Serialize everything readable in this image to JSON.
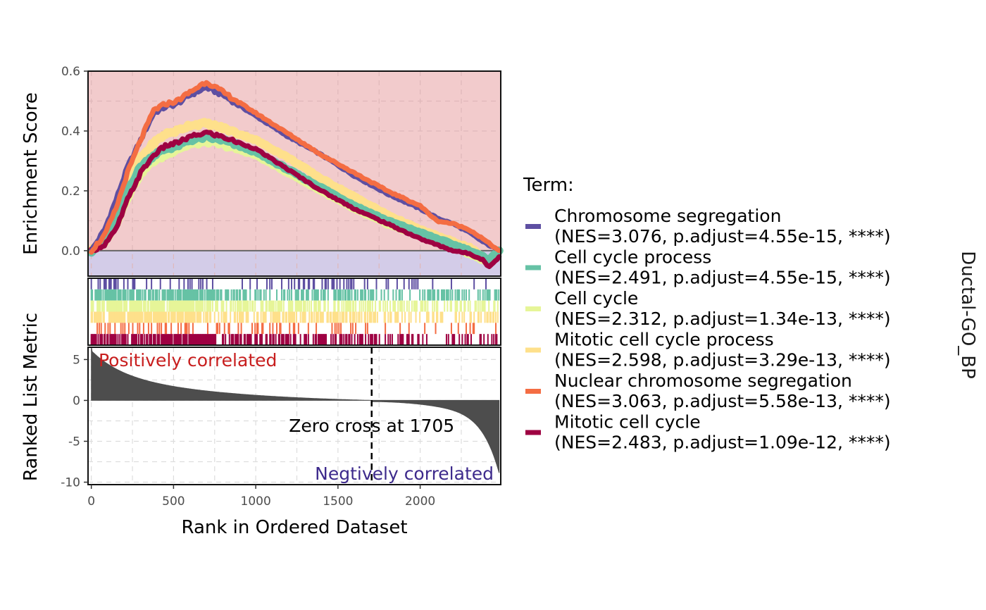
{
  "chart_data": {
    "type": "line",
    "strip_label": "Ductal-GO_BP",
    "legend": {
      "title": "Term:",
      "placement": "right"
    },
    "colors": {
      "positive_bg": "#F2CBCC",
      "negative_bg": "#D3CCE8",
      "positive_text": "#C81E1E",
      "negative_text": "#3D2A8C",
      "metric_fill": "#4D4D4D"
    },
    "x": {
      "label": "Rank in Ordered Dataset",
      "ticks": [
        0,
        500,
        1000,
        1500,
        2000
      ],
      "lim": [
        -20,
        2490
      ]
    },
    "panels": {
      "enrichment": {
        "ylabel": "Enrichment Score",
        "yticks": [
          "0.0",
          "0.2",
          "0.4",
          "0.6"
        ],
        "ytick_values": [
          0.0,
          0.2,
          0.4,
          0.6
        ],
        "ylim": [
          -0.085,
          0.6
        ]
      },
      "metric": {
        "ylabel": "Ranked List Metric",
        "yticks": [
          "5",
          "0",
          "-5",
          "-10"
        ],
        "ytick_values": [
          5,
          0,
          -5,
          -10
        ],
        "ylim": [
          -10.3,
          6.5
        ],
        "positive_label": "Positively correlated",
        "negative_label": "Negtively correlated",
        "zero_cross_label": "Zero cross at 1705",
        "zero_cross": 1705,
        "total": 2480
      }
    },
    "series": [
      {
        "name": "Chromosome segregation",
        "stats": "(NES=3.076, p.adjust=4.55e-15, ****)",
        "color": "#5E4FA2",
        "points": [
          [
            0,
            0.0
          ],
          [
            80,
            0.07
          ],
          [
            150,
            0.17
          ],
          [
            220,
            0.28
          ],
          [
            300,
            0.37
          ],
          [
            380,
            0.46
          ],
          [
            450,
            0.48
          ],
          [
            520,
            0.49
          ],
          [
            600,
            0.52
          ],
          [
            700,
            0.545
          ],
          [
            800,
            0.52
          ],
          [
            1000,
            0.45
          ],
          [
            1200,
            0.38
          ],
          [
            1400,
            0.32
          ],
          [
            1600,
            0.25
          ],
          [
            1800,
            0.19
          ],
          [
            2000,
            0.14
          ],
          [
            2100,
            0.11
          ],
          [
            2200,
            0.09
          ],
          [
            2300,
            0.06
          ],
          [
            2380,
            0.03
          ],
          [
            2480,
            0.0
          ]
        ]
      },
      {
        "name": "Cell cycle process",
        "stats": "(NES=2.491, p.adjust=4.55e-15, ****)",
        "color": "#66C2A5",
        "points": [
          [
            0,
            0.0
          ],
          [
            80,
            0.04
          ],
          [
            150,
            0.1
          ],
          [
            220,
            0.2
          ],
          [
            300,
            0.28
          ],
          [
            380,
            0.32
          ],
          [
            450,
            0.34
          ],
          [
            520,
            0.35
          ],
          [
            600,
            0.37
          ],
          [
            700,
            0.38
          ],
          [
            800,
            0.37
          ],
          [
            1000,
            0.33
          ],
          [
            1200,
            0.27
          ],
          [
            1400,
            0.21
          ],
          [
            1600,
            0.15
          ],
          [
            1800,
            0.1
          ],
          [
            2000,
            0.06
          ],
          [
            2100,
            0.04
          ],
          [
            2200,
            0.02
          ],
          [
            2300,
            0.0
          ],
          [
            2380,
            -0.02
          ],
          [
            2420,
            -0.03
          ],
          [
            2480,
            0.0
          ]
        ]
      },
      {
        "name": "Cell cycle",
        "stats": "(NES=2.312, p.adjust=1.34e-13, ****)",
        "color": "#E6F598",
        "points": [
          [
            0,
            0.0
          ],
          [
            80,
            0.03
          ],
          [
            150,
            0.09
          ],
          [
            220,
            0.18
          ],
          [
            300,
            0.26
          ],
          [
            380,
            0.3
          ],
          [
            450,
            0.32
          ],
          [
            520,
            0.34
          ],
          [
            600,
            0.355
          ],
          [
            700,
            0.365
          ],
          [
            800,
            0.355
          ],
          [
            1000,
            0.32
          ],
          [
            1200,
            0.26
          ],
          [
            1400,
            0.2
          ],
          [
            1600,
            0.14
          ],
          [
            1800,
            0.09
          ],
          [
            2000,
            0.05
          ],
          [
            2100,
            0.03
          ],
          [
            2200,
            0.01
          ],
          [
            2300,
            -0.01
          ],
          [
            2380,
            -0.03
          ],
          [
            2420,
            -0.04
          ],
          [
            2480,
            0.0
          ]
        ]
      },
      {
        "name": "Mitotic cell cycle process",
        "stats": "(NES=2.598, p.adjust=3.29e-13, ****)",
        "color": "#FEE08B",
        "points": [
          [
            0,
            0.0
          ],
          [
            80,
            0.04
          ],
          [
            150,
            0.11
          ],
          [
            220,
            0.22
          ],
          [
            300,
            0.31
          ],
          [
            380,
            0.36
          ],
          [
            450,
            0.39
          ],
          [
            520,
            0.4
          ],
          [
            600,
            0.42
          ],
          [
            700,
            0.425
          ],
          [
            800,
            0.41
          ],
          [
            1000,
            0.37
          ],
          [
            1200,
            0.31
          ],
          [
            1400,
            0.24
          ],
          [
            1600,
            0.18
          ],
          [
            1800,
            0.12
          ],
          [
            2000,
            0.07
          ],
          [
            2100,
            0.05
          ],
          [
            2200,
            0.03
          ],
          [
            2300,
            0.01
          ],
          [
            2380,
            -0.02
          ],
          [
            2420,
            -0.04
          ],
          [
            2480,
            0.0
          ]
        ]
      },
      {
        "name": "Nuclear chromosome segregation",
        "stats": "(NES=3.063, p.adjust=5.58e-13, ****)",
        "color": "#F46D43",
        "points": [
          [
            0,
            0.0
          ],
          [
            80,
            0.05
          ],
          [
            150,
            0.14
          ],
          [
            220,
            0.26
          ],
          [
            300,
            0.37
          ],
          [
            380,
            0.47
          ],
          [
            450,
            0.49
          ],
          [
            520,
            0.5
          ],
          [
            600,
            0.53
          ],
          [
            700,
            0.565
          ],
          [
            800,
            0.53
          ],
          [
            1000,
            0.46
          ],
          [
            1200,
            0.39
          ],
          [
            1400,
            0.32
          ],
          [
            1600,
            0.26
          ],
          [
            1800,
            0.2
          ],
          [
            2000,
            0.15
          ],
          [
            2100,
            0.1
          ],
          [
            2200,
            0.09
          ],
          [
            2300,
            0.07
          ],
          [
            2380,
            0.04
          ],
          [
            2480,
            0.0
          ]
        ]
      },
      {
        "name": "Mitotic cell cycle",
        "stats": "(NES=2.483, p.adjust=1.09e-12, ****)",
        "color": "#9E0142",
        "points": [
          [
            0,
            0.0
          ],
          [
            80,
            0.02
          ],
          [
            150,
            0.07
          ],
          [
            220,
            0.17
          ],
          [
            300,
            0.26
          ],
          [
            380,
            0.32
          ],
          [
            450,
            0.35
          ],
          [
            520,
            0.36
          ],
          [
            600,
            0.38
          ],
          [
            700,
            0.395
          ],
          [
            800,
            0.38
          ],
          [
            1000,
            0.34
          ],
          [
            1200,
            0.27
          ],
          [
            1400,
            0.2
          ],
          [
            1600,
            0.14
          ],
          [
            1800,
            0.09
          ],
          [
            2000,
            0.04
          ],
          [
            2100,
            0.02
          ],
          [
            2200,
            0.0
          ],
          [
            2300,
            -0.01
          ],
          [
            2380,
            -0.03
          ],
          [
            2420,
            -0.055
          ],
          [
            2480,
            -0.02
          ]
        ]
      }
    ]
  }
}
